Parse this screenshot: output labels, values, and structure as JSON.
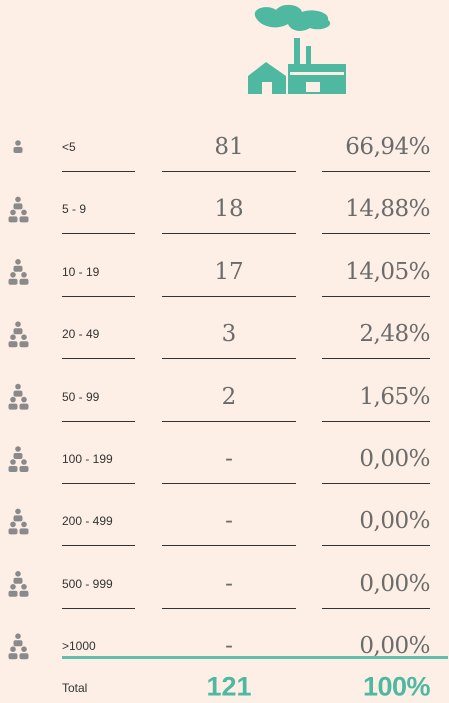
{
  "table": {
    "rows": [
      [
        "<5",
        "81",
        "66,94%"
      ],
      [
        "5 - 9",
        "18",
        "14,88%"
      ],
      [
        "10 - 19",
        "17",
        "14,05%"
      ],
      [
        "20 - 49",
        "3",
        "2,48%"
      ],
      [
        "50 - 99",
        "2",
        "1,65%"
      ],
      [
        "100 - 199",
        "-",
        "0,00%"
      ],
      [
        "200 - 499",
        "-",
        "0,00%"
      ],
      [
        "500 - 999",
        "-",
        "0,00%"
      ],
      [
        ">1000",
        "-",
        "0,00%"
      ]
    ],
    "total": [
      "Total",
      "121",
      "100%"
    ]
  }
}
